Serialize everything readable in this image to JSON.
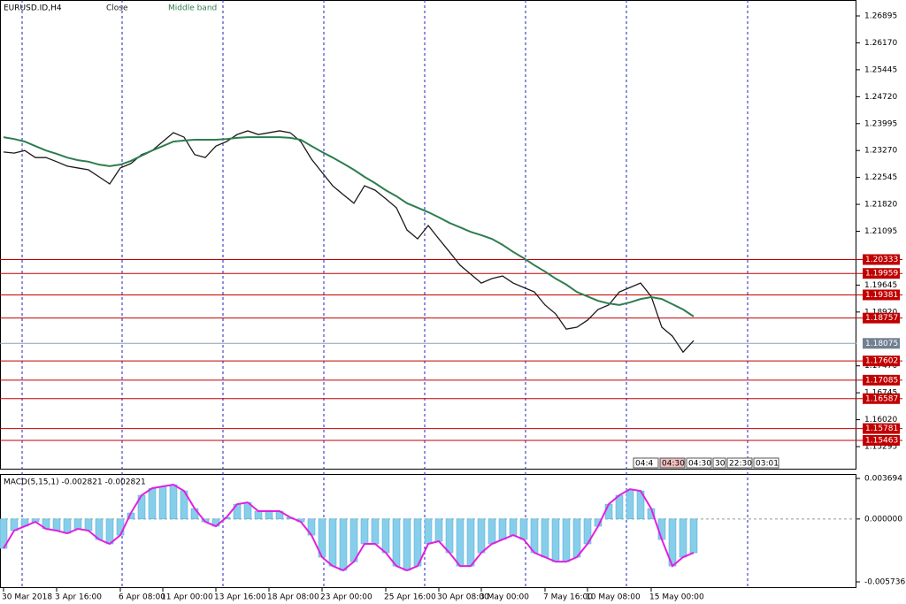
{
  "chart_data": [
    {
      "type": "line",
      "title": "EURUSD.ID,H4",
      "categories": [
        "30 Mar 2018",
        null,
        null,
        null,
        null,
        "3 Apr 16:00",
        null,
        null,
        null,
        null,
        null,
        "6 Apr 08:00",
        null,
        null,
        null,
        "11 Apr 00:00",
        null,
        null,
        null,
        null,
        "13 Apr 16:00",
        null,
        null,
        null,
        null,
        "18 Apr 08:00",
        null,
        null,
        null,
        null,
        "23 Apr 00:00",
        null,
        null,
        null,
        null,
        null,
        "25 Apr 16:00",
        null,
        null,
        null,
        null,
        "30 Apr 08:00",
        null,
        null,
        null,
        "3 May 00:00",
        null,
        null,
        null,
        null,
        null,
        "7 May 16:00",
        null,
        null,
        null,
        "10 May 08:00",
        null,
        null,
        null,
        null,
        null,
        "15 May 00:00",
        null,
        null,
        null,
        null
      ],
      "series": [
        {
          "name": "Close",
          "color": "#1a1a1a",
          "values": [
            1.2323,
            1.232,
            1.2327,
            1.2308,
            1.2308,
            1.2297,
            1.2285,
            1.228,
            1.2275,
            1.2256,
            1.2237,
            1.228,
            1.2292,
            1.2316,
            1.2327,
            1.2351,
            1.2375,
            1.2363,
            1.2316,
            1.2308,
            1.2339,
            1.2351,
            1.237,
            1.238,
            1.237,
            1.2375,
            1.238,
            1.2375,
            1.2351,
            1.2304,
            1.2268,
            1.2232,
            1.2208,
            1.2185,
            1.2232,
            1.222,
            1.2197,
            1.2173,
            1.2113,
            1.2089,
            1.2125,
            1.2089,
            1.2054,
            1.2018,
            1.1994,
            1.197,
            1.1982,
            1.1989,
            1.197,
            1.1958,
            1.1946,
            1.1911,
            1.1887,
            1.1846,
            1.1851,
            1.187,
            1.1899,
            1.1911,
            1.1946,
            1.1958,
            1.197,
            1.1934,
            1.1851,
            1.1827,
            1.1784,
            1.1815
          ]
        },
        {
          "name": "Middle band",
          "color": "#2e7d4f",
          "values": [
            1.2363,
            1.2358,
            1.2351,
            1.2339,
            1.2327,
            1.2318,
            1.2308,
            1.2301,
            1.2297,
            1.2289,
            1.2285,
            1.2289,
            1.2299,
            1.2313,
            1.2327,
            1.2339,
            1.2351,
            1.2354,
            1.2356,
            1.2356,
            1.2356,
            1.2358,
            1.2361,
            1.2363,
            1.2363,
            1.2363,
            1.2363,
            1.2361,
            1.2356,
            1.2339,
            1.2323,
            1.2308,
            1.2292,
            1.2275,
            1.2256,
            1.2239,
            1.222,
            1.2204,
            1.2185,
            1.2173,
            1.2161,
            1.2147,
            1.2132,
            1.212,
            1.2108,
            1.2099,
            1.2089,
            1.2073,
            1.2054,
            1.2037,
            1.2018,
            1.2001,
            1.1982,
            1.1966,
            1.1946,
            1.1934,
            1.1922,
            1.1915,
            1.1911,
            1.1918,
            1.1927,
            1.1932,
            1.1927,
            1.1913,
            1.1899,
            1.188
          ]
        }
      ],
      "ylim": [
        1.147,
        1.27324
      ],
      "yticks": [
        1.26895,
        {
          "value": 1.2617,
          "label": "1.26170"
        },
        1.25445,
        {
          "value": 1.2472,
          "label": "1.24720"
        },
        1.23995,
        {
          "value": 1.2327,
          "label": "1.23270"
        },
        1.22545,
        {
          "value": 1.2182,
          "label": "1.21820"
        },
        1.21095,
        1.19645,
        {
          "value": 1.1892,
          "label": "1.18920"
        },
        {
          "value": 1.1747,
          "label": "1.17470"
        },
        1.16745,
        {
          "value": 1.1602,
          "label": "1.16020"
        },
        1.15295
      ],
      "levels": [
        1.20333,
        1.19959,
        1.19381,
        1.18757,
        1.17602,
        1.17085,
        1.16587,
        1.15781,
        1.15463
      ],
      "level_color": "#c00000",
      "current_price": 1.18075,
      "time_boxes": [
        "04:4",
        "04:30",
        "04:30",
        "30",
        "22:30",
        "03:01"
      ]
    },
    {
      "type": "bar",
      "title": "MACD(5,15,1) -0.002821 -0.002821",
      "color": "#87ceeb",
      "line_color": "#e020e0",
      "values": [
        -0.00268,
        -0.00106,
        -0.00066,
        -0.00026,
        -0.0009,
        -0.00106,
        -0.00131,
        -0.0009,
        -0.00106,
        -0.00187,
        -0.00227,
        -0.00147,
        0.00055,
        0.00216,
        0.0028,
        0.00297,
        0.00313,
        0.00256,
        0.00095,
        -0.00026,
        -0.00066,
        0.00015,
        0.00135,
        0.00151,
        0.00071,
        0.00071,
        0.00071,
        0.00015,
        -0.00026,
        -0.00147,
        -0.00348,
        -0.00429,
        -0.00469,
        -0.00389,
        -0.00227,
        -0.00227,
        -0.00308,
        -0.00429,
        -0.00469,
        -0.00429,
        -0.00227,
        -0.00203,
        -0.00308,
        -0.00429,
        -0.00429,
        -0.00308,
        -0.00227,
        -0.00187,
        -0.00147,
        -0.00187,
        -0.00308,
        -0.00348,
        -0.00389,
        -0.00389,
        -0.00348,
        -0.00227,
        -0.00066,
        0.00135,
        0.00216,
        0.00272,
        0.00256,
        0.00095,
        -0.00187,
        -0.00429,
        -0.00348,
        -0.00308
      ],
      "ylim": [
        -0.0063,
        0.00402
      ],
      "yticks": [
        0.003694,
        {
          "value": 0,
          "label": "0.000000"
        },
        -0.005736
      ]
    }
  ]
}
